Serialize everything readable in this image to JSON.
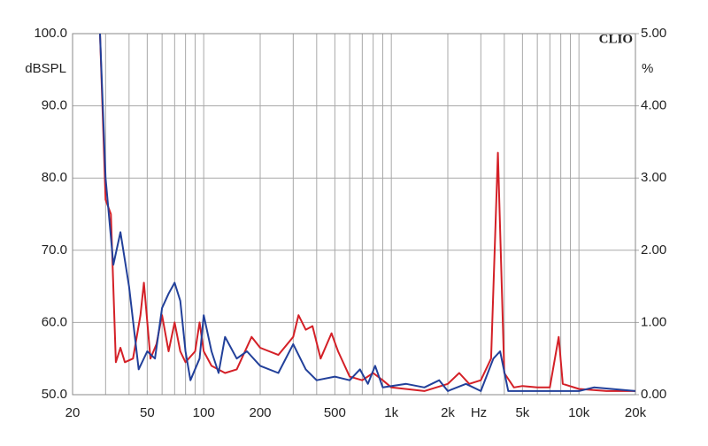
{
  "chart_data": {
    "type": "line",
    "brand": "CLIO",
    "x_label": "Hz",
    "y_label": "dBSPL",
    "y2_label": "%",
    "xscale": "log",
    "grid": true,
    "xlim": [
      20,
      20000
    ],
    "xticks": [
      20,
      50,
      100,
      200,
      500,
      {
        "value": 1000,
        "label": "1k"
      },
      {
        "value": 2000,
        "label": "2k"
      },
      {
        "value": 5000,
        "label": "5k"
      },
      {
        "value": 10000,
        "label": "10k"
      },
      {
        "value": 20000,
        "label": "20k"
      }
    ],
    "xminor_ticks": [
      30,
      40,
      60,
      70,
      80,
      90,
      300,
      400,
      600,
      700,
      800,
      900,
      3000,
      4000,
      6000,
      7000,
      8000,
      9000
    ],
    "ylim": [
      50,
      100
    ],
    "yticks": [
      {
        "value": 50,
        "label": "50.0"
      },
      {
        "value": 60,
        "label": "60.0"
      },
      {
        "value": 70,
        "label": "70.0"
      },
      {
        "value": 80,
        "label": "80.0"
      },
      {
        "value": 90,
        "label": "90.0"
      },
      {
        "value": 100,
        "label": "100.0"
      }
    ],
    "y2lim": [
      0,
      5
    ],
    "y2ticks": [
      {
        "value": 0,
        "label": "0.00"
      },
      {
        "value": 1,
        "label": "1.00"
      },
      {
        "value": 2,
        "label": "2.00"
      },
      {
        "value": 3,
        "label": "3.00"
      },
      {
        "value": 4,
        "label": "4.00"
      },
      {
        "value": 5,
        "label": "5.00"
      }
    ],
    "series": [
      {
        "color": "#d42027",
        "axis": "y2",
        "x": [
          28,
          30,
          32,
          34,
          36,
          38,
          42,
          46,
          48,
          52,
          56,
          60,
          65,
          70,
          75,
          80,
          90,
          95,
          100,
          110,
          130,
          150,
          180,
          200,
          250,
          300,
          320,
          350,
          380,
          420,
          480,
          520,
          600,
          700,
          800,
          900,
          1000,
          1500,
          2000,
          2300,
          2600,
          3000,
          3400,
          3700,
          4000,
          4500,
          5000,
          6000,
          7000,
          7800,
          8200,
          10000,
          14000,
          20000
        ],
        "values": [
          5.0,
          2.7,
          2.5,
          0.45,
          0.65,
          0.45,
          0.5,
          1.1,
          1.55,
          0.5,
          0.7,
          1.1,
          0.6,
          1.0,
          0.6,
          0.45,
          0.6,
          1.0,
          0.6,
          0.4,
          0.3,
          0.35,
          0.8,
          0.65,
          0.55,
          0.8,
          1.1,
          0.9,
          0.95,
          0.5,
          0.85,
          0.6,
          0.25,
          0.2,
          0.3,
          0.2,
          0.1,
          0.05,
          0.15,
          0.3,
          0.15,
          0.2,
          0.5,
          3.35,
          0.3,
          0.1,
          0.12,
          0.1,
          0.1,
          0.8,
          0.15,
          0.08,
          0.05,
          0.05
        ]
      },
      {
        "color": "#22409a",
        "axis": "y2",
        "x": [
          28,
          30,
          33,
          36,
          40,
          45,
          50,
          55,
          60,
          65,
          70,
          75,
          80,
          85,
          95,
          100,
          110,
          120,
          130,
          150,
          170,
          200,
          250,
          300,
          350,
          400,
          500,
          600,
          680,
          750,
          820,
          900,
          1200,
          1500,
          1800,
          2000,
          2500,
          3000,
          3500,
          3800,
          4200,
          5000,
          10000,
          12000,
          20000
        ],
        "values": [
          5.0,
          3.0,
          1.8,
          2.25,
          1.5,
          0.35,
          0.6,
          0.5,
          1.2,
          1.4,
          1.55,
          1.3,
          0.6,
          0.2,
          0.5,
          1.1,
          0.6,
          0.3,
          0.8,
          0.5,
          0.6,
          0.4,
          0.3,
          0.7,
          0.35,
          0.2,
          0.25,
          0.2,
          0.35,
          0.15,
          0.4,
          0.1,
          0.15,
          0.1,
          0.2,
          0.05,
          0.15,
          0.05,
          0.5,
          0.6,
          0.05,
          0.05,
          0.05,
          0.1,
          0.05
        ]
      }
    ]
  }
}
